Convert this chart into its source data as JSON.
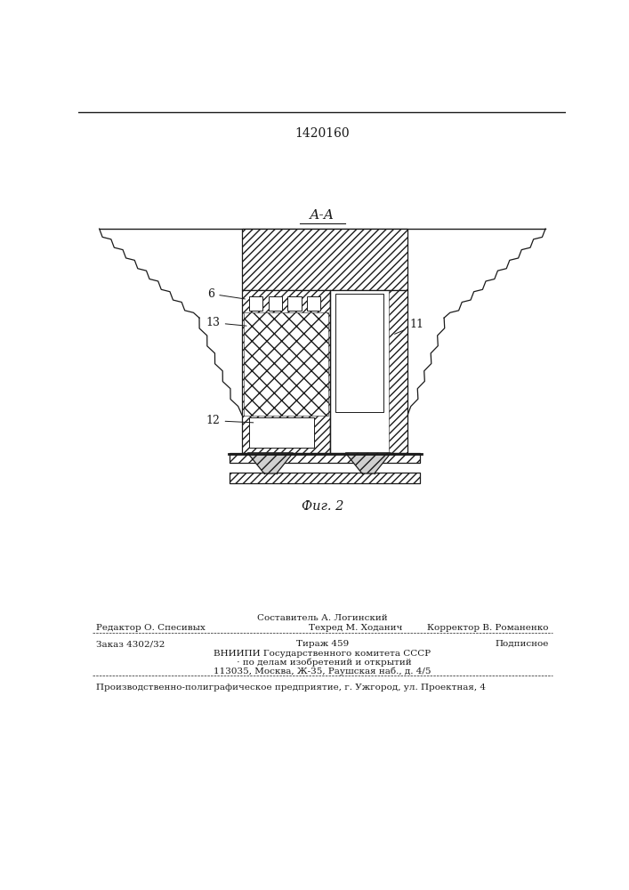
{
  "patent_number": "1420160",
  "section_label": "А-А",
  "fig_label": "Фиг. 2",
  "bg_color": "#ffffff",
  "line_color": "#1a1a1a",
  "footer_compositor": "Составитель А. Логинский",
  "footer_editor": "Редактор О. Спесивых",
  "footer_techred": "Техред М. Ходанич",
  "footer_korrektor": "Корректор В. Романенко",
  "footer_order": "Заказ 4302/32",
  "footer_tirazh": "Тираж 459",
  "footer_podpisnoe": "Подписное",
  "footer_vniipf1": "ВНИИПИ Государственного комитета СССР",
  "footer_vniipf2": " · по делам изобретений и открытий",
  "footer_vniipf3": "113035, Москва, Ж-35, Раушская наб., д. 4/5",
  "footer_last": "Производственно-полиграфическое предприятие, г. Ужгород, ул. Проектная, 4"
}
